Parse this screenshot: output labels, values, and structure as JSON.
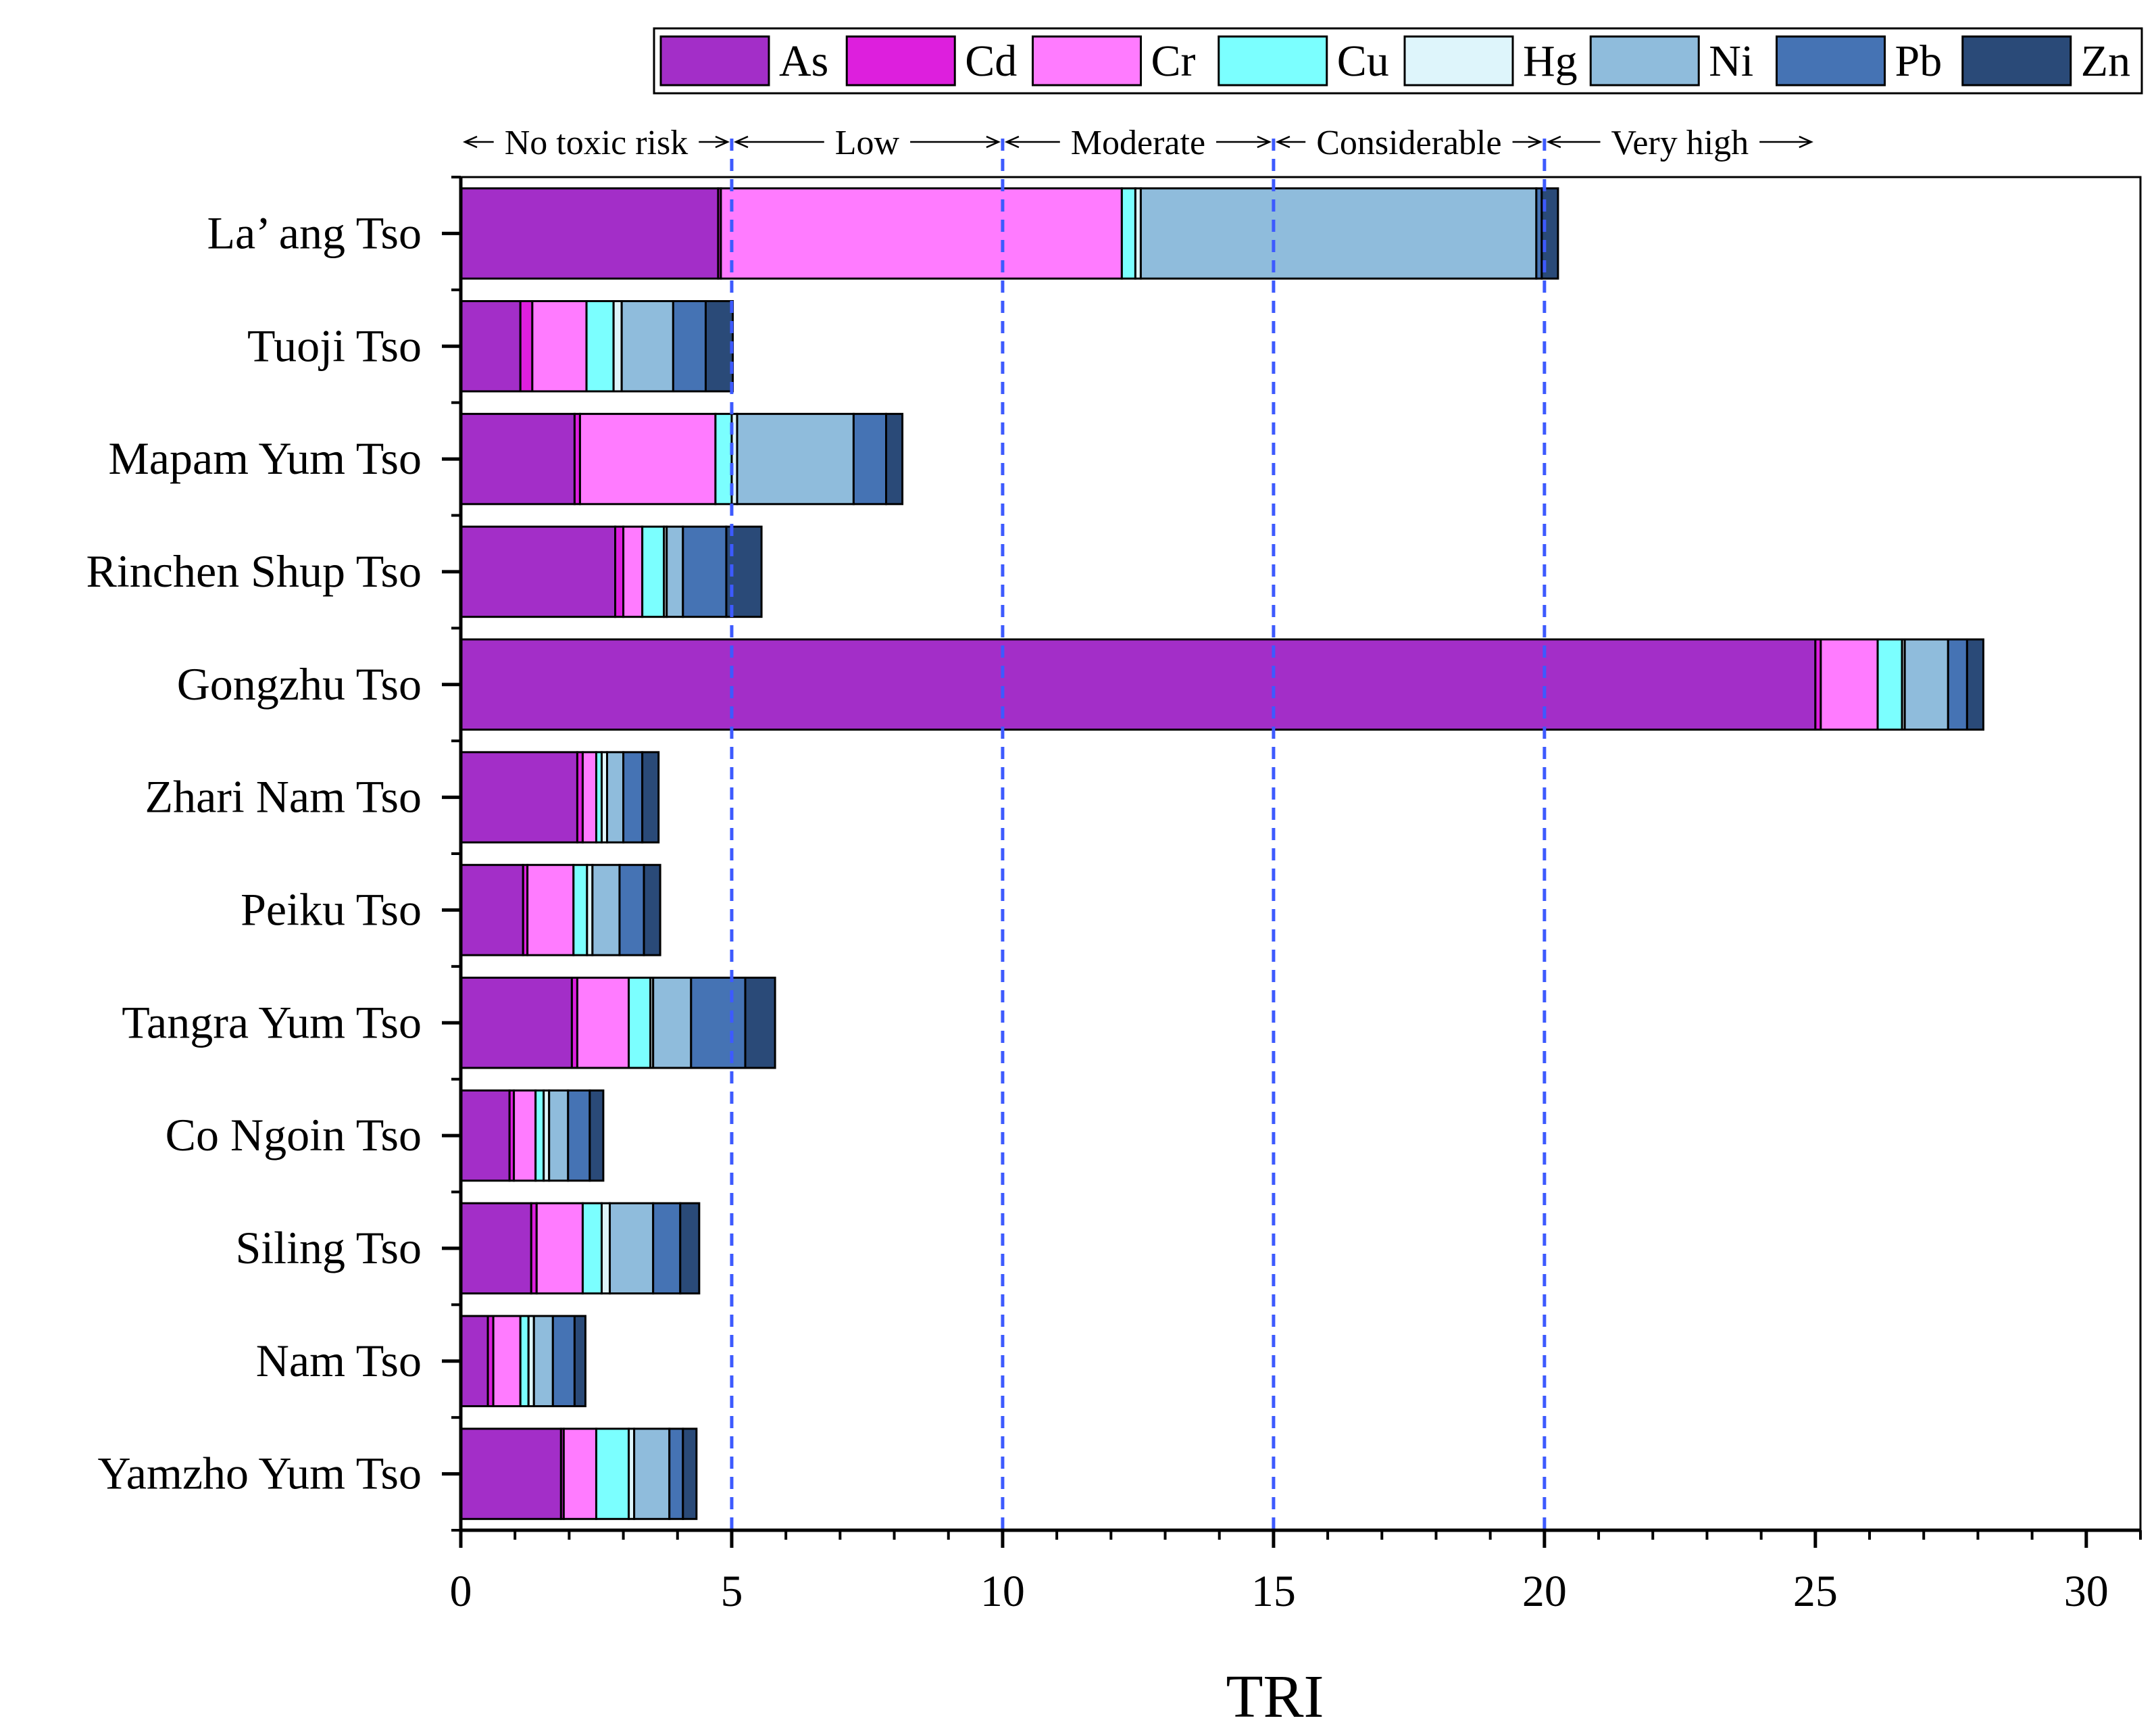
{
  "chart_data": {
    "type": "bar",
    "orientation": "horizontal",
    "stacked": true,
    "xlabel": "TRI",
    "ylabel": "",
    "xlim": [
      0,
      31
    ],
    "xticks": [
      0,
      5,
      10,
      15,
      20,
      25,
      30
    ],
    "categories": [
      "La’ ang Tso",
      "Tuoji Tso",
      "Mapam Yum Tso",
      "Rinchen Shup Tso",
      "Gongzhu Tso",
      "Zhari Nam Tso",
      "Peiku Tso",
      "Tangra Yum Tso",
      "Co Ngoin Tso",
      "Siling Tso",
      "Nam Tso",
      "Yamzho Yum Tso"
    ],
    "series": [
      {
        "name": "As",
        "color": "#a32ec8",
        "values": [
          4.75,
          1.1,
          2.1,
          2.85,
          25.0,
          2.15,
          1.15,
          2.05,
          0.9,
          1.3,
          0.5,
          1.85
        ]
      },
      {
        "name": "Cd",
        "color": "#dd1fdd",
        "values": [
          0.05,
          0.22,
          0.1,
          0.15,
          0.1,
          0.1,
          0.08,
          0.1,
          0.08,
          0.1,
          0.1,
          0.05
        ]
      },
      {
        "name": "Cr",
        "color": "#ff7bff",
        "values": [
          7.4,
          1.0,
          2.5,
          0.35,
          1.05,
          0.25,
          0.85,
          0.95,
          0.4,
          0.85,
          0.5,
          0.6
        ]
      },
      {
        "name": "Cu",
        "color": "#7bffff",
        "values": [
          0.25,
          0.5,
          0.3,
          0.4,
          0.45,
          0.1,
          0.25,
          0.4,
          0.15,
          0.35,
          0.15,
          0.6
        ]
      },
      {
        "name": "Hg",
        "color": "#def5fb",
        "values": [
          0.1,
          0.15,
          0.1,
          0.05,
          0.05,
          0.1,
          0.1,
          0.05,
          0.1,
          0.15,
          0.1,
          0.1
        ]
      },
      {
        "name": "Ni",
        "color": "#8fbcdc",
        "values": [
          7.3,
          0.95,
          2.15,
          0.3,
          0.8,
          0.3,
          0.5,
          0.7,
          0.35,
          0.8,
          0.35,
          0.65
        ]
      },
      {
        "name": "Pb",
        "color": "#4573b4",
        "values": [
          0.1,
          0.6,
          0.6,
          0.8,
          0.35,
          0.35,
          0.45,
          1.0,
          0.4,
          0.5,
          0.4,
          0.25
        ]
      },
      {
        "name": "Zn",
        "color": "#2a4a78",
        "values": [
          0.3,
          0.5,
          0.3,
          0.65,
          0.3,
          0.3,
          0.3,
          0.55,
          0.25,
          0.35,
          0.2,
          0.25
        ]
      }
    ],
    "thresholds": [
      5,
      10,
      15,
      20
    ],
    "risk_zones": [
      {
        "label": "No toxic risk",
        "from": 0,
        "to": 5
      },
      {
        "label": "Low",
        "from": 5,
        "to": 10
      },
      {
        "label": "Moderate",
        "from": 10,
        "to": 15
      },
      {
        "label": "Considerable",
        "from": 15,
        "to": 20
      },
      {
        "label": "Very high",
        "from": 20,
        "to": 25
      }
    ],
    "legend_position": "top-right"
  }
}
